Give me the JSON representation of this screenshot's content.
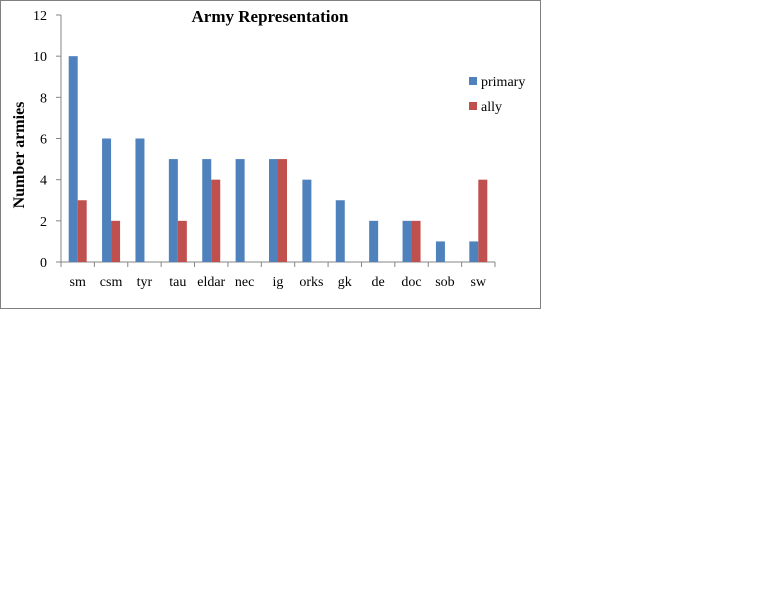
{
  "chart_data": {
    "type": "bar",
    "title": "Army  Representation",
    "xlabel": "",
    "ylabel": "Number armies",
    "ylim": [
      0,
      12
    ],
    "yticks": [
      0,
      2,
      4,
      6,
      8,
      10,
      12
    ],
    "categories": [
      "sm",
      "csm",
      "tyr",
      "tau",
      "eldar",
      "nec",
      "ig",
      "orks",
      "gk",
      "de",
      "doc",
      "sob",
      "sw"
    ],
    "series": [
      {
        "name": "primary",
        "color": "#4F81BD",
        "values": [
          10,
          6,
          6,
          5,
          5,
          5,
          5,
          4,
          3,
          2,
          2,
          1,
          1
        ]
      },
      {
        "name": "ally",
        "color": "#C0504D",
        "values": [
          3,
          2,
          0,
          2,
          4,
          0,
          5,
          0,
          0,
          0,
          2,
          0,
          4
        ]
      }
    ],
    "legend": "right",
    "grid": false
  }
}
